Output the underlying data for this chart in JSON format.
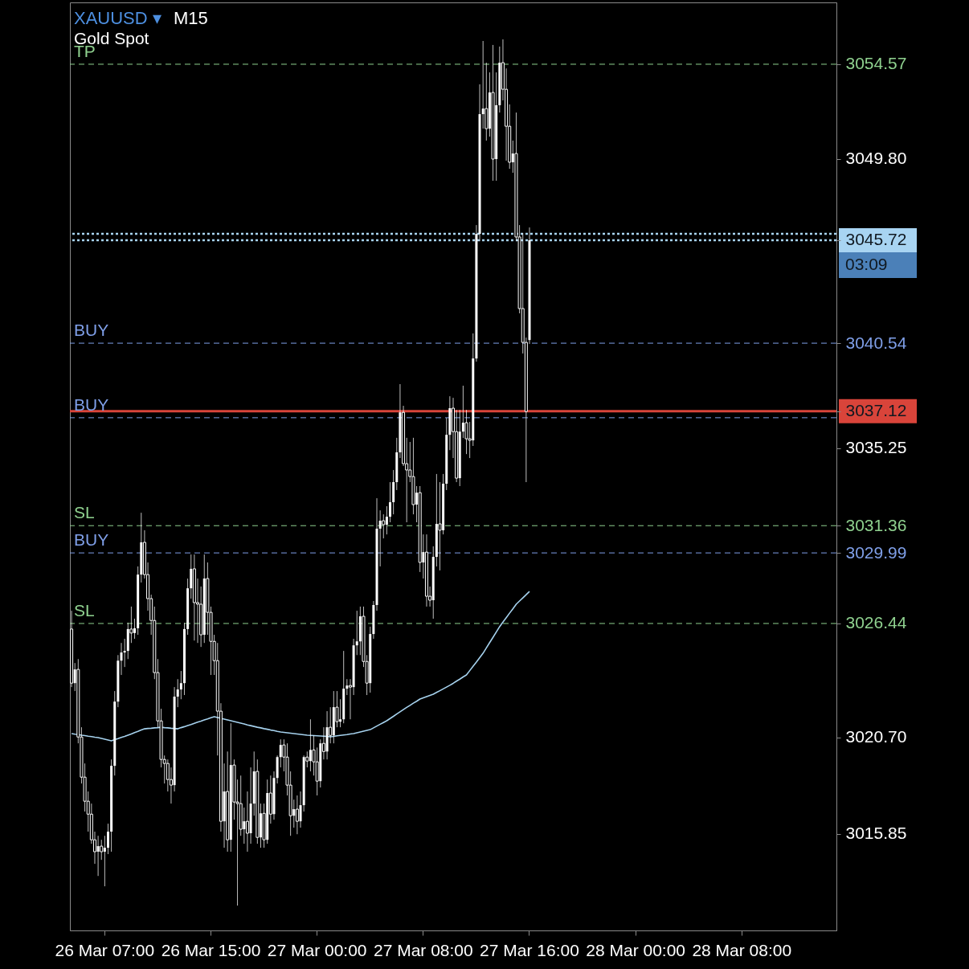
{
  "chart_data": {
    "type": "candlestick",
    "title": "XAUUSD ▾ M15",
    "subtitle": "Gold Spot",
    "color": "#ffffff",
    "categories": [
      null,
      null,
      null,
      null,
      null,
      null,
      null,
      null,
      null,
      null,
      "26 Mar 07:00",
      null,
      null,
      null,
      null,
      null,
      null,
      null,
      null,
      null,
      null,
      null,
      null,
      null,
      null,
      null,
      null,
      null,
      null,
      null,
      null,
      null,
      null,
      null,
      null,
      null,
      null,
      null,
      null,
      null,
      null,
      null,
      "26 Mar 15:00",
      null,
      null,
      null,
      null,
      null,
      null,
      null,
      null,
      null,
      null,
      null,
      null,
      null,
      null,
      null,
      null,
      null,
      null,
      null,
      null,
      null,
      null,
      null,
      null,
      null,
      null,
      null,
      null,
      null,
      null,
      null,
      "27 Mar 00:00",
      null,
      null,
      null,
      null,
      null,
      null,
      null,
      null,
      null,
      null,
      null,
      null,
      null,
      null,
      null,
      null,
      null,
      null,
      null,
      null,
      null,
      null,
      null,
      null,
      null,
      null,
      null,
      null,
      null,
      null,
      null,
      "27 Mar 08:00",
      null,
      null,
      null,
      null,
      null,
      null,
      null,
      null,
      null,
      null,
      null,
      null,
      null,
      null,
      null,
      null,
      null,
      null,
      null,
      null,
      null,
      null,
      null,
      null,
      null,
      null,
      null,
      null,
      null,
      null,
      null,
      "27 Mar 16:00",
      null,
      null,
      null,
      null,
      null,
      null,
      null,
      null,
      null,
      null,
      null,
      null,
      null,
      null,
      null,
      null,
      null,
      null,
      null,
      null,
      null,
      null,
      null,
      null,
      null,
      null,
      null,
      null,
      null,
      null,
      null,
      "28 Mar 00:00",
      null,
      null,
      null,
      null,
      null,
      null,
      null,
      null,
      null,
      null,
      null,
      null,
      null,
      null,
      null,
      null,
      null,
      null,
      null,
      null,
      null,
      null,
      null,
      null,
      null,
      null,
      null,
      null,
      null,
      null,
      null,
      "28 Mar 08:00",
      null,
      null,
      null,
      null,
      null,
      null,
      null,
      null,
      null,
      null,
      null,
      null,
      null,
      null,
      null,
      null,
      null,
      null,
      null,
      null,
      null,
      null,
      null,
      null,
      null,
      null,
      null,
      null
    ],
    "ohlc": [
      [
        3026.16,
        3027.08,
        3023.24,
        3023.44
      ],
      [
        3023.44,
        3024.45,
        3023.04,
        3024.13
      ],
      [
        3024.13,
        3024.65,
        3020.41,
        3020.73
      ],
      [
        3020.73,
        3021.22,
        3018.39,
        3018.71
      ],
      [
        3018.71,
        3019.4,
        3016.98,
        3017.5
      ],
      [
        3017.5,
        3017.99,
        3015.97,
        3016.85
      ],
      [
        3016.85,
        3017.38,
        3015.36,
        3015.56
      ],
      [
        3015.56,
        3015.97,
        3014.35,
        3014.96
      ],
      [
        3014.96,
        3015.76,
        3013.74,
        3015.24
      ],
      [
        3015.24,
        3015.56,
        3014.55,
        3014.96
      ],
      [
        3014.96,
        3015.76,
        3013.22,
        3015.16
      ],
      [
        3015.16,
        3016.37,
        3014.84,
        3015.97
      ],
      [
        3015.97,
        3019.6,
        3014.96,
        3019.28
      ],
      [
        3019.28,
        3023.04,
        3018.79,
        3022.51
      ],
      [
        3022.51,
        3024.85,
        3022.23,
        3024.57
      ],
      [
        3024.57,
        3025.46,
        3023.85,
        3024.98
      ],
      [
        3024.98,
        3025.67,
        3024.25,
        3025.06
      ],
      [
        3025.06,
        3026.48,
        3024.65,
        3026.16
      ],
      [
        3026.16,
        3027.29,
        3025.46,
        3025.96
      ],
      [
        3025.96,
        3026.68,
        3025.67,
        3026.2
      ],
      [
        3026.2,
        3029.31,
        3025.87,
        3028.9
      ],
      [
        3028.9,
        3032.01,
        3028.5,
        3030.52
      ],
      [
        3030.52,
        3031.13,
        3028.7,
        3028.9
      ],
      [
        3028.9,
        3029.51,
        3027.08,
        3027.69
      ],
      [
        3027.69,
        3027.89,
        3025.87,
        3026.59
      ],
      [
        3026.59,
        3027.29,
        3023.64,
        3023.97
      ],
      [
        3023.97,
        3024.65,
        3021.22,
        3021.54
      ],
      [
        3021.54,
        3022.15,
        3019.2,
        3019.6
      ],
      [
        3019.6,
        3019.8,
        3018.39,
        3019.4
      ],
      [
        3019.4,
        3019.6,
        3017.99,
        3018.59
      ],
      [
        3018.59,
        3019.2,
        3017.38,
        3018.31
      ],
      [
        3018.31,
        3023.24,
        3017.99,
        3022.76
      ],
      [
        3022.76,
        3023.64,
        3022.23,
        3023.12
      ],
      [
        3023.12,
        3024.05,
        3022.63,
        3023.44
      ],
      [
        3023.44,
        3026.48,
        3022.84,
        3026.16
      ],
      [
        3026.16,
        3028.7,
        3025.87,
        3028.21
      ],
      [
        3028.21,
        3029.91,
        3027.69,
        3029.19
      ],
      [
        3029.19,
        3029.91,
        3025.58,
        3027.49
      ],
      [
        3027.49,
        3028.7,
        3025.46,
        3027.41
      ],
      [
        3027.41,
        3028.3,
        3025.26,
        3025.87
      ],
      [
        3025.87,
        3029.91,
        3025.46,
        3028.7
      ],
      [
        3028.7,
        3029.51,
        3025.87,
        3027.0
      ],
      [
        3027.0,
        3027.29,
        3023.85,
        3025.54
      ],
      [
        3025.54,
        3025.87,
        3023.85,
        3024.57
      ],
      [
        3024.57,
        3025.46,
        3019.8,
        3022.03
      ],
      [
        3022.03,
        3022.43,
        3015.97,
        3016.49
      ],
      [
        3016.49,
        3019.4,
        3015.16,
        3017.99
      ],
      [
        3017.99,
        3020.0,
        3014.96,
        3015.56
      ],
      [
        3015.56,
        3021.42,
        3014.96,
        3019.32
      ],
      [
        3019.32,
        3019.6,
        3016.57,
        3017.46
      ],
      [
        3017.46,
        3018.59,
        3012.25,
        3017.38
      ],
      [
        3017.38,
        3018.79,
        3015.76,
        3016.09
      ],
      [
        3016.09,
        3017.18,
        3015.36,
        3016.49
      ],
      [
        3016.49,
        3017.99,
        3014.96,
        3015.89
      ],
      [
        3015.89,
        3019.2,
        3015.36,
        3017.38
      ],
      [
        3017.38,
        3020.0,
        3016.77,
        3019.0
      ],
      [
        3019.0,
        3019.6,
        3015.36,
        3015.68
      ],
      [
        3015.68,
        3017.38,
        3015.16,
        3016.89
      ],
      [
        3016.89,
        3017.38,
        3015.16,
        3015.56
      ],
      [
        3015.56,
        3018.59,
        3015.36,
        3017.91
      ],
      [
        3017.91,
        3018.79,
        3016.37,
        3016.85
      ],
      [
        3016.85,
        3019.0,
        3016.57,
        3018.67
      ],
      [
        3018.67,
        3019.8,
        3018.39,
        3019.72
      ],
      [
        3019.72,
        3020.61,
        3019.2,
        3020.33
      ],
      [
        3020.33,
        3020.61,
        3019.0,
        3019.72
      ],
      [
        3019.72,
        3020.41,
        3017.79,
        3018.31
      ],
      [
        3018.31,
        3019.0,
        3015.76,
        3016.77
      ],
      [
        3016.77,
        3017.58,
        3016.17,
        3017.1
      ],
      [
        3017.1,
        3017.79,
        3015.84,
        3016.49
      ],
      [
        3016.49,
        3017.99,
        3016.17,
        3017.3
      ],
      [
        3017.3,
        3019.8,
        3016.98,
        3019.72
      ],
      [
        3019.72,
        3020.0,
        3019.2,
        3019.52
      ],
      [
        3019.52,
        3021.62,
        3019.0,
        3020.08
      ],
      [
        3020.08,
        3020.81,
        3018.79,
        3019.48
      ],
      [
        3019.48,
        3020.2,
        3017.79,
        3018.51
      ],
      [
        3018.51,
        3020.61,
        3018.19,
        3020.41
      ],
      [
        3020.41,
        3021.22,
        3019.6,
        3020.0
      ],
      [
        3020.0,
        3022.03,
        3019.6,
        3021.22
      ],
      [
        3021.22,
        3022.23,
        3020.41,
        3020.81
      ],
      [
        3020.81,
        3023.04,
        3020.41,
        3022.23
      ],
      [
        3022.23,
        3023.04,
        3021.22,
        3021.5
      ],
      [
        3021.5,
        3022.63,
        3021.22,
        3021.62
      ],
      [
        3021.62,
        3025.06,
        3021.42,
        3023.16
      ],
      [
        3023.16,
        3023.64,
        3022.84,
        3023.32
      ],
      [
        3023.32,
        3023.64,
        3021.62,
        3023.24
      ],
      [
        3023.24,
        3025.67,
        3022.84,
        3025.34
      ],
      [
        3025.34,
        3027.08,
        3024.85,
        3025.54
      ],
      [
        3025.54,
        3027.29,
        3024.85,
        3026.8
      ],
      [
        3026.8,
        3027.29,
        3024.25,
        3024.53
      ],
      [
        3024.53,
        3024.85,
        3022.84,
        3023.44
      ],
      [
        3023.44,
        3026.28,
        3022.96,
        3025.91
      ],
      [
        3025.91,
        3027.57,
        3025.67,
        3027.37
      ],
      [
        3027.37,
        3032.74,
        3027.08,
        3031.21
      ],
      [
        3031.21,
        3032.13,
        3029.31,
        3031.61
      ],
      [
        3031.61,
        3031.93,
        3030.72,
        3031.41
      ],
      [
        3031.41,
        3032.34,
        3030.92,
        3031.81
      ],
      [
        3031.81,
        3033.55,
        3031.53,
        3032.54
      ],
      [
        3032.54,
        3034.16,
        3031.93,
        3033.55
      ],
      [
        3033.55,
        3035.78,
        3033.15,
        3035.05
      ],
      [
        3035.05,
        3038.48,
        3034.76,
        3037.06
      ],
      [
        3037.06,
        3037.39,
        3034.36,
        3034.48
      ],
      [
        3034.48,
        3035.78,
        3031.53,
        3034.16
      ],
      [
        3034.16,
        3035.57,
        3033.55,
        3033.83
      ],
      [
        3033.83,
        3035.78,
        3031.93,
        3032.42
      ],
      [
        3032.42,
        3033.35,
        3031.53,
        3033.02
      ],
      [
        3033.02,
        3033.35,
        3029.03,
        3029.51
      ],
      [
        3029.51,
        3030.92,
        3028.7,
        3030.03
      ],
      [
        3030.03,
        3030.92,
        3027.29,
        3027.81
      ],
      [
        3027.81,
        3028.3,
        3027.29,
        3027.61
      ],
      [
        3027.61,
        3030.32,
        3026.68,
        3029.79
      ],
      [
        3029.79,
        3033.96,
        3029.31,
        3031.45
      ],
      [
        3031.45,
        3033.55,
        3029.11,
        3031.13
      ],
      [
        3031.13,
        3033.96,
        3030.92,
        3033.47
      ],
      [
        3033.47,
        3036.78,
        3033.15,
        3035.93
      ],
      [
        3035.93,
        3037.87,
        3035.16,
        3037.27
      ],
      [
        3037.27,
        3037.79,
        3034.76,
        3036.09
      ],
      [
        3036.09,
        3037.18,
        3033.55,
        3033.75
      ],
      [
        3033.75,
        3037.18,
        3033.35,
        3036.09
      ],
      [
        3036.09,
        3038.4,
        3035.77,
        3036.54
      ],
      [
        3036.54,
        3037.18,
        3034.96,
        3035.73
      ],
      [
        3035.73,
        3036.58,
        3034.76,
        3035.65
      ],
      [
        3035.65,
        3041.03,
        3035.37,
        3039.77
      ],
      [
        3039.77,
        3046.48,
        3039.61,
        3046.04
      ],
      [
        3046.04,
        3053.56,
        3045.67,
        3052.06
      ],
      [
        3052.06,
        3055.74,
        3051.33,
        3052.34
      ],
      [
        3052.34,
        3054.65,
        3050.73,
        3051.33
      ],
      [
        3051.33,
        3054.16,
        3050.93,
        3053.15
      ],
      [
        3053.15,
        3055.54,
        3048.71,
        3049.8
      ],
      [
        3049.8,
        3054.16,
        3048.71,
        3052.51
      ],
      [
        3052.51,
        3055.46,
        3052.14,
        3054.65
      ],
      [
        3054.65,
        3055.82,
        3052.75,
        3053.31
      ],
      [
        3053.31,
        3054.36,
        3049.72,
        3051.45
      ],
      [
        3051.45,
        3052.55,
        3049.31,
        3049.64
      ],
      [
        3049.64,
        3050.73,
        3049.11,
        3050.08
      ],
      [
        3050.08,
        3052.14,
        3045.67,
        3045.88
      ],
      [
        3045.88,
        3046.48,
        3042.04,
        3042.28
      ],
      [
        3042.28,
        3046.08,
        3040.02,
        3040.58
      ],
      [
        3040.58,
        3040.82,
        3033.55,
        3037.1
      ],
      [
        3040.7,
        3046.36,
        3040.5,
        3045.72
      ],
      null,
      null,
      null,
      null,
      null,
      null,
      null,
      null,
      null,
      null,
      null,
      null,
      null,
      null,
      null,
      null,
      null,
      null,
      null,
      null,
      null,
      null,
      null,
      null,
      null,
      null,
      null,
      null,
      null,
      null,
      null,
      null,
      null,
      null,
      null,
      null,
      null,
      null,
      null,
      null,
      null,
      null,
      null,
      null,
      null,
      null,
      null,
      null,
      null,
      null,
      null,
      null,
      null,
      null,
      null,
      null,
      null,
      null,
      null,
      null,
      null,
      null,
      null,
      null,
      null,
      null,
      null,
      null,
      null,
      null,
      null,
      null,
      null,
      null,
      null,
      null,
      null,
      null,
      null,
      null,
      null,
      null,
      null,
      null,
      null,
      null,
      null,
      null,
      null,
      null,
      null,
      null
    ],
    "series": [
      {
        "type": "line",
        "color": "#a6d2ee",
        "values": [
          3020.9,
          3020.87,
          3020.85,
          3020.82,
          3020.8,
          3020.77,
          3020.75,
          3020.72,
          3020.7,
          3020.66,
          3020.62,
          3020.58,
          3020.54,
          3020.6,
          3020.65,
          3020.71,
          3020.76,
          3020.82,
          3020.88,
          3020.95,
          3021.01,
          3021.08,
          3021.14,
          3021.16,
          3021.17,
          3021.19,
          3021.2,
          3021.22,
          3021.2,
          3021.19,
          3021.17,
          3021.16,
          3021.14,
          3021.2,
          3021.25,
          3021.31,
          3021.36,
          3021.42,
          3021.48,
          3021.53,
          3021.59,
          3021.64,
          3021.7,
          3021.75,
          3021.71,
          3021.67,
          3021.63,
          3021.59,
          3021.55,
          3021.51,
          3021.47,
          3021.43,
          3021.39,
          3021.34,
          3021.3,
          3021.26,
          3021.22,
          3021.19,
          3021.15,
          3021.12,
          3021.08,
          3021.05,
          3021.01,
          3020.98,
          3020.96,
          3020.94,
          3020.92,
          3020.9,
          3020.88,
          3020.86,
          3020.84,
          3020.82,
          3020.81,
          3020.8,
          3020.79,
          3020.78,
          3020.77,
          3020.76,
          3020.74,
          3020.76,
          3020.79,
          3020.81,
          3020.83,
          3020.85,
          3020.88,
          3020.9,
          3020.94,
          3020.98,
          3021.02,
          3021.06,
          3021.1,
          3021.19,
          3021.28,
          3021.37,
          3021.46,
          3021.55,
          3021.66,
          3021.77,
          3021.89,
          3022.0,
          3022.11,
          3022.22,
          3022.32,
          3022.43,
          3022.53,
          3022.64,
          3022.7,
          3022.76,
          3022.82,
          3022.88,
          3022.97,
          3023.06,
          3023.15,
          3023.24,
          3023.33,
          3023.43,
          3023.54,
          3023.64,
          3023.75,
          3023.85,
          3024.07,
          3024.29,
          3024.5,
          3024.72,
          3024.94,
          3025.21,
          3025.48,
          3025.74,
          3026.01,
          3026.28,
          3026.51,
          3026.73,
          3026.96,
          3027.18,
          3027.41,
          3027.57,
          3027.73,
          3027.89,
          3028.05,
          null,
          null,
          null,
          null,
          null,
          null,
          null,
          null,
          null,
          null,
          null,
          null,
          null,
          null,
          null,
          null,
          null,
          null,
          null,
          null,
          null,
          null,
          null,
          null,
          null,
          null,
          null,
          null,
          null,
          null,
          null,
          null,
          null,
          null,
          null,
          null,
          null,
          null,
          null,
          null,
          null,
          null,
          null,
          null,
          null,
          null,
          null,
          null,
          null,
          null,
          null,
          null,
          null,
          null,
          null,
          null,
          null,
          null,
          null,
          null,
          null,
          null,
          null,
          null,
          null,
          null,
          null,
          null,
          null,
          null,
          null,
          null,
          null,
          null,
          null,
          null,
          null,
          null,
          null,
          null,
          null,
          null,
          null,
          null,
          null,
          null,
          null,
          null,
          null,
          null,
          null,
          null
        ]
      }
    ],
    "ylim": [
      3011.0,
      3057.68
    ],
    "yticks": [
      {
        "value": 3015.85,
        "label": "3015.85"
      },
      {
        "value": 3020.7,
        "label": "3020.70"
      },
      {
        "value": 3026.44,
        "label": "3026.44"
      },
      {
        "value": 3029.99,
        "label": "3029.99"
      },
      {
        "value": 3031.36,
        "label": "3031.36"
      },
      {
        "value": 3035.25,
        "label": "3035.25"
      },
      {
        "value": 3037.12,
        "label": "3037.12"
      },
      {
        "value": 3040.54,
        "label": "3040.54"
      },
      {
        "value": 3045.72,
        "label": "3045.72"
      },
      {
        "value": 3049.8,
        "label": "3049.80"
      },
      {
        "value": 3054.57,
        "label": "3054.57"
      }
    ],
    "ref_lines": [
      {
        "axis": "y",
        "value": 3054.57,
        "label": "TP",
        "color": "#8fd18f",
        "line_style": "dashed"
      },
      {
        "axis": "y",
        "value": 3045.72,
        "color": "#a8d4f2",
        "line_style": "dotted"
      },
      {
        "axis": "y",
        "value": 3046.04,
        "color": "#a8d4f2",
        "line_style": "dotted"
      },
      {
        "axis": "y",
        "value": 3040.54,
        "label": "BUY",
        "color": "#7f9fe8",
        "line_style": "dashed"
      },
      {
        "axis": "y",
        "value": 3037.12,
        "color": "#d9443a",
        "line_style": "solid"
      },
      {
        "axis": "y",
        "value": 3036.79,
        "label": "BUY",
        "color": "#7f9fe8",
        "line_style": "dashed"
      },
      {
        "axis": "y",
        "value": 3031.36,
        "label": "SL",
        "color": "#8fd18f",
        "line_style": "dashed"
      },
      {
        "axis": "y",
        "value": 3029.99,
        "label": "BUY",
        "color": "#7f9fe8",
        "line_style": "dashed"
      },
      {
        "axis": "y",
        "value": 3026.44,
        "label": "SL",
        "color": "#8fd18f",
        "line_style": "dashed"
      }
    ],
    "annotations": [
      "03:09"
    ]
  }
}
